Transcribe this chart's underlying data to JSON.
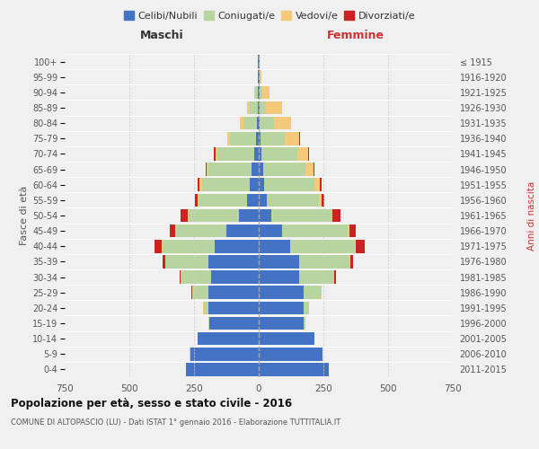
{
  "age_groups": [
    "0-4",
    "5-9",
    "10-14",
    "15-19",
    "20-24",
    "25-29",
    "30-34",
    "35-39",
    "40-44",
    "45-49",
    "50-54",
    "55-59",
    "60-64",
    "65-69",
    "70-74",
    "75-79",
    "80-84",
    "85-89",
    "90-94",
    "95-99",
    "100+"
  ],
  "birth_years": [
    "2011-2015",
    "2006-2010",
    "2001-2005",
    "1996-2000",
    "1991-1995",
    "1986-1990",
    "1981-1985",
    "1976-1980",
    "1971-1975",
    "1966-1970",
    "1961-1965",
    "1956-1960",
    "1951-1955",
    "1946-1950",
    "1941-1945",
    "1936-1940",
    "1931-1935",
    "1926-1930",
    "1921-1925",
    "1916-1920",
    "≤ 1915"
  ],
  "colors": {
    "celibe": "#4472c4",
    "coniugato": "#b8d4a0",
    "vedovo": "#f5c97a",
    "divorziato": "#cc2222"
  },
  "males": {
    "celibe": [
      280,
      265,
      235,
      190,
      195,
      195,
      185,
      195,
      170,
      125,
      75,
      45,
      35,
      28,
      18,
      12,
      8,
      5,
      3,
      2,
      2
    ],
    "coniugato": [
      2,
      2,
      2,
      5,
      18,
      60,
      115,
      165,
      200,
      195,
      195,
      185,
      185,
      165,
      140,
      100,
      50,
      30,
      10,
      2,
      0
    ],
    "vedovo": [
      0,
      0,
      0,
      0,
      1,
      2,
      2,
      2,
      4,
      3,
      3,
      5,
      8,
      8,
      10,
      8,
      15,
      10,
      5,
      1,
      0
    ],
    "divorziato": [
      0,
      0,
      0,
      0,
      0,
      2,
      5,
      10,
      28,
      20,
      30,
      12,
      8,
      5,
      5,
      3,
      0,
      0,
      0,
      0,
      0
    ]
  },
  "females": {
    "nubile": [
      270,
      245,
      215,
      175,
      175,
      175,
      155,
      155,
      120,
      90,
      50,
      32,
      22,
      16,
      10,
      7,
      5,
      4,
      3,
      2,
      2
    ],
    "coniugata": [
      2,
      2,
      2,
      5,
      20,
      65,
      135,
      195,
      250,
      255,
      230,
      200,
      195,
      165,
      140,
      95,
      55,
      25,
      10,
      2,
      0
    ],
    "vedova": [
      0,
      0,
      0,
      0,
      1,
      2,
      2,
      3,
      5,
      5,
      5,
      10,
      18,
      30,
      40,
      55,
      65,
      60,
      30,
      5,
      2
    ],
    "divorziata": [
      0,
      0,
      0,
      0,
      0,
      2,
      5,
      10,
      35,
      25,
      30,
      12,
      8,
      5,
      5,
      2,
      0,
      0,
      0,
      0,
      0
    ]
  },
  "xlim": 750,
  "xlabel_left": "Maschi",
  "xlabel_right": "Femmine",
  "ylabel_left": "Fasce di età",
  "ylabel_right": "Anni di nascita",
  "title": "Popolazione per età, sesso e stato civile - 2016",
  "subtitle": "COMUNE DI ALTOPASCIO (LU) - Dati ISTAT 1° gennaio 2016 - Elaborazione TUTTITALIA.IT",
  "legend_labels": [
    "Celibi/Nubili",
    "Coniugati/e",
    "Vedovi/e",
    "Divorziati/e"
  ],
  "background_color": "#f0f0f0",
  "bar_height": 0.85
}
